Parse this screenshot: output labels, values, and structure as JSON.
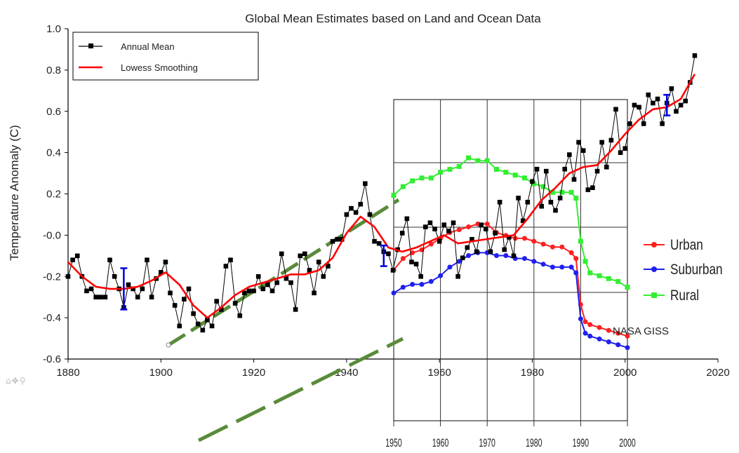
{
  "chart_data": [
    {
      "type": "line",
      "title": "Global Mean Estimates based on Land and Ocean Data",
      "ylabel": "Temperature Anomaly (C)",
      "xlabel": "",
      "xlim": [
        1880,
        2020
      ],
      "ylim": [
        -0.6,
        1.0
      ],
      "x_ticks": [
        "1880",
        "1900",
        "1920",
        "1940",
        "1960",
        "1980",
        "2000",
        "2020"
      ],
      "y_ticks": [
        "1.0",
        "0.8",
        "0.6",
        "0.4",
        "0.2",
        "-0.0",
        "-0.2",
        "-0.4",
        "-0.6"
      ],
      "legend": {
        "position": "top-left",
        "entries": [
          "Annual Mean",
          "Lowess Smoothing"
        ]
      },
      "colors": {
        "annual": "#000000",
        "lowess": "#ff0000",
        "error_bar": "#0000dd"
      },
      "series": [
        {
          "name": "Annual Mean",
          "x": [
            1880,
            1881,
            1882,
            1883,
            1884,
            1885,
            1886,
            1887,
            1888,
            1889,
            1890,
            1891,
            1892,
            1893,
            1894,
            1895,
            1896,
            1897,
            1898,
            1899,
            1900,
            1901,
            1902,
            1903,
            1904,
            1905,
            1906,
            1907,
            1908,
            1909,
            1910,
            1911,
            1912,
            1913,
            1914,
            1915,
            1916,
            1917,
            1918,
            1919,
            1920,
            1921,
            1922,
            1923,
            1924,
            1925,
            1926,
            1927,
            1928,
            1929,
            1930,
            1931,
            1932,
            1933,
            1934,
            1935,
            1936,
            1937,
            1938,
            1939,
            1940,
            1941,
            1942,
            1943,
            1944,
            1945,
            1946,
            1947,
            1948,
            1949,
            1950,
            1951,
            1952,
            1953,
            1954,
            1955,
            1956,
            1957,
            1958,
            1959,
            1960,
            1961,
            1962,
            1963,
            1964,
            1965,
            1966,
            1967,
            1968,
            1969,
            1970,
            1971,
            1972,
            1973,
            1974,
            1975,
            1976,
            1977,
            1978,
            1979,
            1980,
            1981,
            1982,
            1983,
            1984,
            1985,
            1986,
            1987,
            1988,
            1989,
            1990,
            1991,
            1992,
            1993,
            1994,
            1995,
            1996,
            1997,
            1998,
            1999,
            2000,
            2001,
            2002,
            2003,
            2004,
            2005,
            2006,
            2007,
            2008,
            2009,
            2010,
            2011,
            2012,
            2013,
            2014,
            2015
          ],
          "values": [
            -0.2,
            -0.12,
            -0.1,
            -0.2,
            -0.27,
            -0.26,
            -0.3,
            -0.3,
            -0.3,
            -0.12,
            -0.2,
            -0.26,
            -0.35,
            -0.24,
            -0.26,
            -0.3,
            -0.26,
            -0.12,
            -0.3,
            -0.21,
            -0.18,
            -0.13,
            -0.28,
            -0.34,
            -0.44,
            -0.31,
            -0.26,
            -0.38,
            -0.43,
            -0.46,
            -0.41,
            -0.44,
            -0.32,
            -0.36,
            -0.15,
            -0.12,
            -0.33,
            -0.39,
            -0.28,
            -0.27,
            -0.27,
            -0.2,
            -0.26,
            -0.24,
            -0.27,
            -0.23,
            -0.09,
            -0.21,
            -0.23,
            -0.36,
            -0.1,
            -0.09,
            -0.17,
            -0.28,
            -0.13,
            -0.2,
            -0.15,
            -0.03,
            -0.02,
            -0.02,
            0.1,
            0.13,
            0.11,
            0.15,
            0.25,
            0.1,
            -0.03,
            -0.04,
            -0.08,
            -0.09,
            -0.17,
            -0.07,
            0.01,
            0.08,
            -0.13,
            -0.14,
            -0.2,
            0.04,
            0.06,
            0.03,
            -0.03,
            0.05,
            0.02,
            0.06,
            -0.2,
            -0.11,
            -0.06,
            -0.02,
            -0.08,
            0.05,
            0.03,
            -0.08,
            0.01,
            0.16,
            -0.07,
            -0.01,
            -0.1,
            0.18,
            0.07,
            0.16,
            0.26,
            0.32,
            0.14,
            0.31,
            0.16,
            0.12,
            0.18,
            0.32,
            0.39,
            0.27,
            0.45,
            0.41,
            0.22,
            0.23,
            0.31,
            0.45,
            0.33,
            0.46,
            0.61,
            0.4,
            0.42,
            0.54,
            0.63,
            0.62,
            0.54,
            0.68,
            0.64,
            0.66,
            0.54,
            0.64,
            0.71,
            0.6,
            0.63,
            0.65,
            0.74,
            0.87
          ]
        },
        {
          "name": "Lowess Smoothing",
          "x": [
            1880,
            1883,
            1886,
            1889,
            1892,
            1895,
            1898,
            1901,
            1904,
            1907,
            1910,
            1913,
            1916,
            1919,
            1922,
            1925,
            1928,
            1931,
            1934,
            1937,
            1940,
            1943,
            1946,
            1949,
            1952,
            1955,
            1958,
            1961,
            1964,
            1967,
            1970,
            1973,
            1976,
            1979,
            1982,
            1985,
            1988,
            1991,
            1994,
            1997,
            2000,
            2003,
            2006,
            2009,
            2012,
            2015
          ],
          "values": [
            -0.13,
            -0.2,
            -0.25,
            -0.26,
            -0.26,
            -0.25,
            -0.22,
            -0.18,
            -0.24,
            -0.34,
            -0.4,
            -0.35,
            -0.29,
            -0.25,
            -0.23,
            -0.21,
            -0.19,
            -0.19,
            -0.17,
            -0.11,
            0.01,
            0.09,
            0.04,
            -0.06,
            -0.08,
            -0.06,
            -0.03,
            0.0,
            -0.04,
            -0.03,
            -0.02,
            -0.01,
            0.0,
            0.08,
            0.17,
            0.23,
            0.3,
            0.33,
            0.34,
            0.41,
            0.49,
            0.56,
            0.61,
            0.62,
            0.66,
            0.78
          ]
        }
      ]
    },
    {
      "type": "line",
      "title": "",
      "xlim": [
        1950,
        2000
      ],
      "x_ticks": [
        "1950",
        "1960",
        "1970",
        "1980",
        "1990",
        "2000"
      ],
      "legend": {
        "position": "right",
        "entries": [
          "Urban",
          "Suburban",
          "Rural"
        ]
      },
      "annotation": "NASA GISS",
      "colors": {
        "urban": "#ff2020",
        "suburban": "#2020ee",
        "rural": "#33ee33",
        "trend": "#5a8a3a"
      },
      "series": [
        {
          "name": "Urban",
          "x": [
            1950,
            1952,
            1954,
            1956,
            1958,
            1960,
            1962,
            1964,
            1966,
            1968,
            1970,
            1972,
            1974,
            1976,
            1978,
            1980,
            1982,
            1984,
            1986,
            1988,
            1989,
            1990,
            1991,
            1992,
            1994,
            1996,
            1998,
            2000
          ],
          "values": [
            0.5,
            0.54,
            0.56,
            0.57,
            0.59,
            0.61,
            0.63,
            0.64,
            0.65,
            0.66,
            0.66,
            0.63,
            0.62,
            0.61,
            0.61,
            0.6,
            0.59,
            0.58,
            0.58,
            0.56,
            0.54,
            0.38,
            0.32,
            0.31,
            0.3,
            0.29,
            0.28,
            0.27
          ]
        },
        {
          "name": "Suburban",
          "x": [
            1950,
            1952,
            1954,
            1956,
            1958,
            1960,
            1962,
            1964,
            1966,
            1968,
            1970,
            1972,
            1974,
            1976,
            1978,
            1980,
            1982,
            1984,
            1986,
            1988,
            1989,
            1990,
            1991,
            1992,
            1994,
            1996,
            1998,
            2000
          ],
          "values": [
            0.42,
            0.44,
            0.45,
            0.45,
            0.46,
            0.48,
            0.51,
            0.53,
            0.55,
            0.56,
            0.56,
            0.55,
            0.55,
            0.54,
            0.54,
            0.53,
            0.52,
            0.51,
            0.51,
            0.51,
            0.49,
            0.33,
            0.28,
            0.27,
            0.26,
            0.25,
            0.24,
            0.23
          ]
        },
        {
          "name": "Rural",
          "x": [
            1950,
            1952,
            1954,
            1956,
            1958,
            1960,
            1962,
            1964,
            1966,
            1968,
            1970,
            1972,
            1974,
            1976,
            1978,
            1980,
            1982,
            1984,
            1986,
            1988,
            1989,
            1990,
            1991,
            1992,
            1994,
            1996,
            1998,
            2000
          ],
          "values": [
            0.76,
            0.79,
            0.81,
            0.82,
            0.82,
            0.84,
            0.85,
            0.86,
            0.89,
            0.88,
            0.88,
            0.85,
            0.84,
            0.83,
            0.82,
            0.8,
            0.79,
            0.77,
            0.77,
            0.77,
            0.75,
            0.6,
            0.53,
            0.49,
            0.48,
            0.47,
            0.46,
            0.44
          ]
        }
      ]
    }
  ],
  "toolbar": {
    "home_icon": "⌂",
    "pan_icon": "✥",
    "zoom_icon": "⚲"
  }
}
